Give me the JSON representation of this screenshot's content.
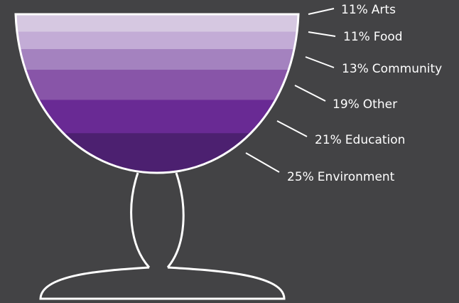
{
  "chart_data": {
    "type": "goblet",
    "categories": [
      "Arts",
      "Food",
      "Community",
      "Other",
      "Education",
      "Environment"
    ],
    "values": [
      11,
      11,
      13,
      19,
      21,
      25
    ],
    "value_labels": [
      "11%",
      "11%",
      "13%",
      "19%",
      "21%",
      "25%"
    ],
    "colors": [
      "#d6c8e1",
      "#c3acd6",
      "#a482bf",
      "#8855a8",
      "#692a94",
      "#4c2070"
    ]
  }
}
